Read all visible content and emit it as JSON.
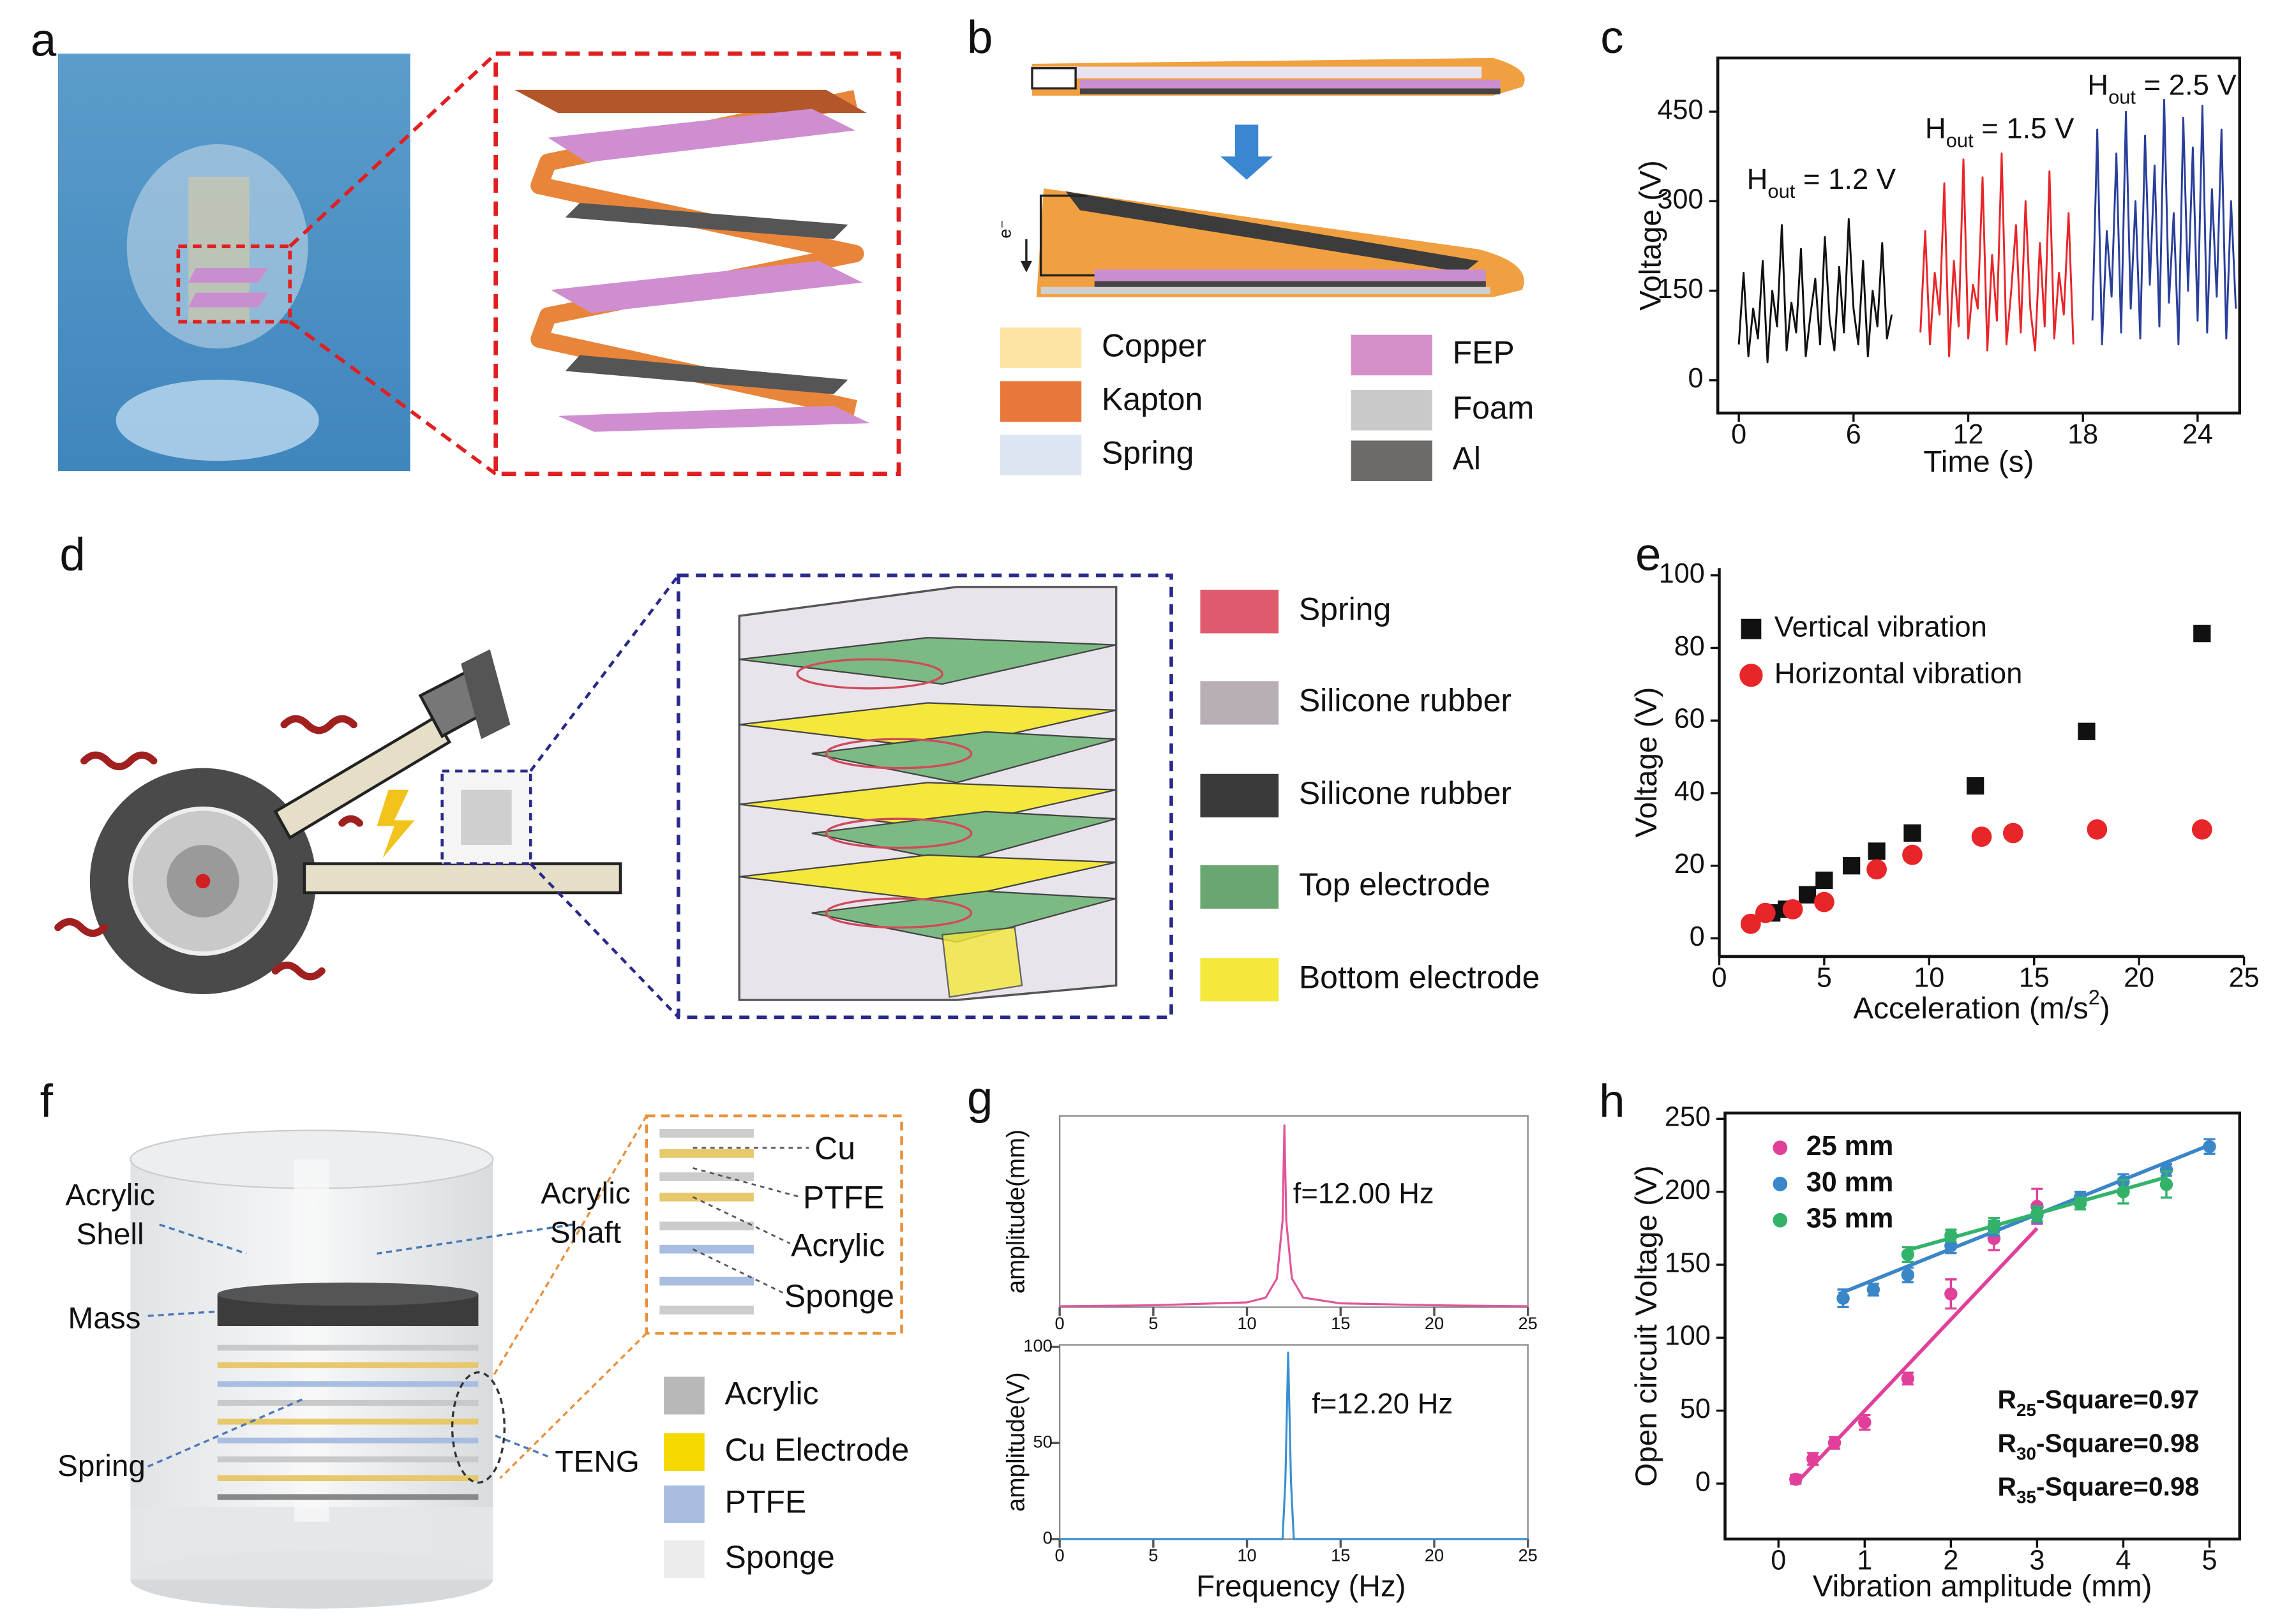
{
  "panel_labels": [
    "a",
    "b",
    "c",
    "d",
    "e",
    "f",
    "g",
    "h"
  ],
  "panel_b": {
    "electron": "e⁻",
    "legend": [
      {
        "name": "Copper",
        "color": "#fde3a4"
      },
      {
        "name": "Kapton",
        "color": "#e8773a"
      },
      {
        "name": "Spring",
        "color": "#dce6f2"
      },
      {
        "name": "FEP",
        "color": "#d48fc6"
      },
      {
        "name": "Foam",
        "color": "#c9c9c9"
      },
      {
        "name": "Al",
        "color": "#6d6a6a"
      }
    ]
  },
  "panel_d": {
    "legend": [
      {
        "name": "Spring",
        "color": "#e05a6e"
      },
      {
        "name": "Silicone rubber",
        "color": "#b8aeb6"
      },
      {
        "name": "Silicone rubber",
        "color": "#3a3a3a"
      },
      {
        "name": "Top electrode",
        "color": "#6aa770"
      },
      {
        "name": "Bottom electrode",
        "color": "#f4e83c"
      }
    ]
  },
  "panel_f": {
    "acrylic_shell": [
      "Acrylic",
      "Shell"
    ],
    "acrylic_shaft": [
      "Acrylic",
      "Shaft"
    ],
    "mass": "Mass",
    "spring": "Spring",
    "teng": "TENG",
    "inset": [
      "Cu",
      "PTFE",
      "Acrylic",
      "Sponge"
    ],
    "legend": [
      {
        "name": "Acrylic",
        "color": "#b8b8b8"
      },
      {
        "name": "Cu Electrode",
        "color": "#f5d800"
      },
      {
        "name": "PTFE",
        "color": "#a9bde0"
      },
      {
        "name": "Sponge",
        "color": "#ececec"
      }
    ]
  },
  "chart_data": [
    {
      "type": "line",
      "xlabel": "Time (s)",
      "ylabel": "Voltage (V)",
      "xlim": [
        -1.1,
        26.2
      ],
      "ylim": [
        -55,
        540
      ],
      "xticks": [
        0,
        6,
        12,
        18,
        24
      ],
      "yticks": [
        0,
        150,
        300,
        450
      ],
      "series": [
        {
          "color": "#111111",
          "x": [
            0,
            0.25,
            0.5,
            0.75,
            1,
            1.25,
            1.5,
            1.75,
            2,
            2.25,
            2.5,
            2.75,
            3,
            3.25,
            3.5,
            3.75,
            4,
            4.25,
            4.5,
            4.75,
            5,
            5.25,
            5.5,
            5.75,
            6,
            6.25,
            6.5,
            6.75,
            7,
            7.25,
            7.5,
            7.75,
            8
          ],
          "values": [
            60,
            180,
            40,
            120,
            70,
            200,
            30,
            150,
            90,
            260,
            50,
            130,
            80,
            220,
            40,
            110,
            170,
            60,
            240,
            100,
            50,
            190,
            80,
            270,
            120,
            60,
            200,
            40,
            150,
            90,
            230,
            70,
            110
          ]
        },
        {
          "color": "#e8262a",
          "x": [
            9.5,
            9.75,
            10,
            10.25,
            10.5,
            10.75,
            11,
            11.25,
            11.5,
            11.75,
            12,
            12.25,
            12.5,
            12.75,
            13,
            13.25,
            13.5,
            13.75,
            14,
            14.25,
            14.5,
            14.75,
            15,
            15.25,
            15.5,
            15.75,
            16,
            16.25,
            16.5,
            16.75,
            17,
            17.25,
            17.5
          ],
          "values": [
            80,
            250,
            60,
            180,
            110,
            330,
            40,
            200,
            90,
            370,
            70,
            160,
            120,
            340,
            50,
            210,
            100,
            380,
            60,
            150,
            260,
            80,
            300,
            120,
            50,
            230,
            90,
            350,
            70,
            180,
            110,
            280,
            60
          ]
        },
        {
          "color": "#2a3f9a",
          "x": [
            18.5,
            18.75,
            19,
            19.25,
            19.5,
            19.75,
            20,
            20.25,
            20.5,
            20.75,
            21,
            21.25,
            21.5,
            21.75,
            22,
            22.25,
            22.5,
            22.75,
            23,
            23.25,
            23.5,
            23.75,
            24,
            24.25,
            24.5,
            24.75,
            25,
            25.25,
            25.5,
            25.75,
            26
          ],
          "values": [
            100,
            420,
            60,
            250,
            140,
            380,
            80,
            450,
            120,
            300,
            70,
            410,
            160,
            360,
            90,
            470,
            130,
            280,
            60,
            440,
            150,
            390,
            100,
            460,
            80,
            320,
            140,
            420,
            70,
            300,
            120
          ]
        }
      ],
      "annotations": [
        [
          {
            "t": "H"
          },
          {
            "t": "out",
            "sub": true
          },
          {
            "t": " = 1.2 V"
          }
        ],
        [
          {
            "t": "H"
          },
          {
            "t": "out",
            "sub": true
          },
          {
            "t": " = 1.5 V"
          }
        ],
        [
          {
            "t": "H"
          },
          {
            "t": "out",
            "sub": true
          },
          {
            "t": " = 2.5 V"
          }
        ]
      ]
    },
    {
      "type": "scatter",
      "xlabel": [
        {
          "t": "Acceleration (m/s"
        },
        {
          "t": "2",
          "sup": true
        },
        {
          "t": ")"
        }
      ],
      "ylabel": "Voltage (V)",
      "xlim": [
        0,
        25
      ],
      "ylim": [
        -5,
        102
      ],
      "xticks": [
        0,
        5,
        10,
        15,
        20,
        25
      ],
      "yticks": [
        0,
        20,
        40,
        60,
        80,
        100
      ],
      "legend": "upper left",
      "series": [
        {
          "name": "Vertical vibration",
          "color": "#111111",
          "marker": "square",
          "x": [
            2.5,
            3.2,
            4.2,
            5,
            6.3,
            7.5,
            9.2,
            12.2,
            17.5,
            23
          ],
          "values": [
            7,
            8,
            12,
            16,
            20,
            24,
            29,
            42,
            57,
            84
          ]
        },
        {
          "name": "Horizontal vibration",
          "color": "#e8262a",
          "marker": "circle",
          "x": [
            1.5,
            2.2,
            3.5,
            5,
            7.5,
            9.2,
            12.5,
            14,
            18,
            23
          ],
          "values": [
            4,
            7,
            8,
            10,
            19,
            23,
            28,
            29,
            30,
            30
          ]
        }
      ]
    },
    {
      "type": "line",
      "ylabel": "amplitude(mm)",
      "xlim": [
        0,
        25
      ],
      "ylim": [
        0,
        2
      ],
      "xticks": [
        0,
        5,
        10,
        15,
        20,
        25
      ],
      "yticks": [],
      "series": [
        {
          "color": "#e0559a",
          "x": [
            0,
            5,
            10,
            11,
            11.6,
            11.9,
            12,
            12.1,
            12.4,
            13,
            15,
            20,
            25
          ],
          "values": [
            0.01,
            0.02,
            0.05,
            0.1,
            0.3,
            0.9,
            1.9,
            0.9,
            0.3,
            0.1,
            0.04,
            0.02,
            0.01
          ]
        }
      ],
      "annotations": [
        [
          {
            "t": "f=12.00 Hz"
          }
        ]
      ]
    },
    {
      "type": "line",
      "xlabel": "Frequency (Hz)",
      "ylabel": "amplitude(V)",
      "xlim": [
        0,
        25
      ],
      "ylim": [
        0,
        101
      ],
      "xticks": [
        0,
        5,
        10,
        15,
        20,
        25
      ],
      "yticks": [
        0,
        50,
        100
      ],
      "series": [
        {
          "color": "#3a8fd0",
          "x": [
            0,
            11.9,
            12.05,
            12.2,
            12.35,
            12.5,
            25
          ],
          "values": [
            0,
            0,
            30,
            97,
            30,
            0,
            0
          ]
        }
      ],
      "annotations": [
        [
          {
            "t": "f=12.20 Hz"
          }
        ]
      ]
    },
    {
      "type": "scatter",
      "xlabel": "Vibration amplitude (mm)",
      "ylabel": "Open circuit Voltage (V)",
      "xlim": [
        -0.62,
        5.35
      ],
      "ylim": [
        -38,
        254
      ],
      "xticks": [
        0,
        1,
        2,
        3,
        4,
        5
      ],
      "yticks": [
        0,
        50,
        100,
        150,
        200,
        250
      ],
      "legend": "upper left",
      "series": [
        {
          "name": "25 mm",
          "color": "#e0409a",
          "marker": "circle",
          "x": [
            0.2,
            0.4,
            0.65,
            1,
            1.5,
            2,
            2.5,
            3
          ],
          "values": [
            3,
            17,
            28,
            42,
            72,
            130,
            168,
            190
          ],
          "errors": [
            3,
            4,
            4,
            5,
            4,
            10,
            8,
            12
          ],
          "fit": {
            "x": [
              0.2,
              3
            ],
            "values": [
              0,
              175
            ]
          }
        },
        {
          "name": "30 mm",
          "color": "#3a86c8",
          "marker": "circle",
          "x": [
            0.75,
            1.1,
            1.5,
            2,
            2.5,
            3,
            3.5,
            4,
            4.5,
            5
          ],
          "values": [
            127,
            133,
            143,
            163,
            175,
            184,
            196,
            207,
            215,
            231
          ],
          "errors": [
            6,
            4,
            5,
            5,
            5,
            5,
            4,
            5,
            4,
            5
          ],
          "fit": {
            "x": [
              0.7,
              5
            ],
            "values": [
              130,
              232
            ]
          }
        },
        {
          "name": "35 mm",
          "color": "#33b36a",
          "marker": "circle",
          "x": [
            1.5,
            2,
            2.5,
            3,
            3.5,
            4,
            4.5
          ],
          "values": [
            157,
            170,
            177,
            185,
            192,
            200,
            205
          ],
          "errors": [
            5,
            4,
            5,
            5,
            4,
            8,
            9
          ],
          "fit": {
            "x": [
              1.5,
              4.5
            ],
            "values": [
              160,
              210
            ]
          }
        }
      ],
      "annotations": [
        [
          {
            "t": "R"
          },
          {
            "t": "25",
            "sub": true
          },
          {
            "t": "-Square=0.97"
          }
        ],
        [
          {
            "t": "R"
          },
          {
            "t": "30",
            "sub": true
          },
          {
            "t": "-Square=0.98"
          }
        ],
        [
          {
            "t": "R"
          },
          {
            "t": "35",
            "sub": true
          },
          {
            "t": "-Square=0.98"
          }
        ]
      ]
    }
  ]
}
